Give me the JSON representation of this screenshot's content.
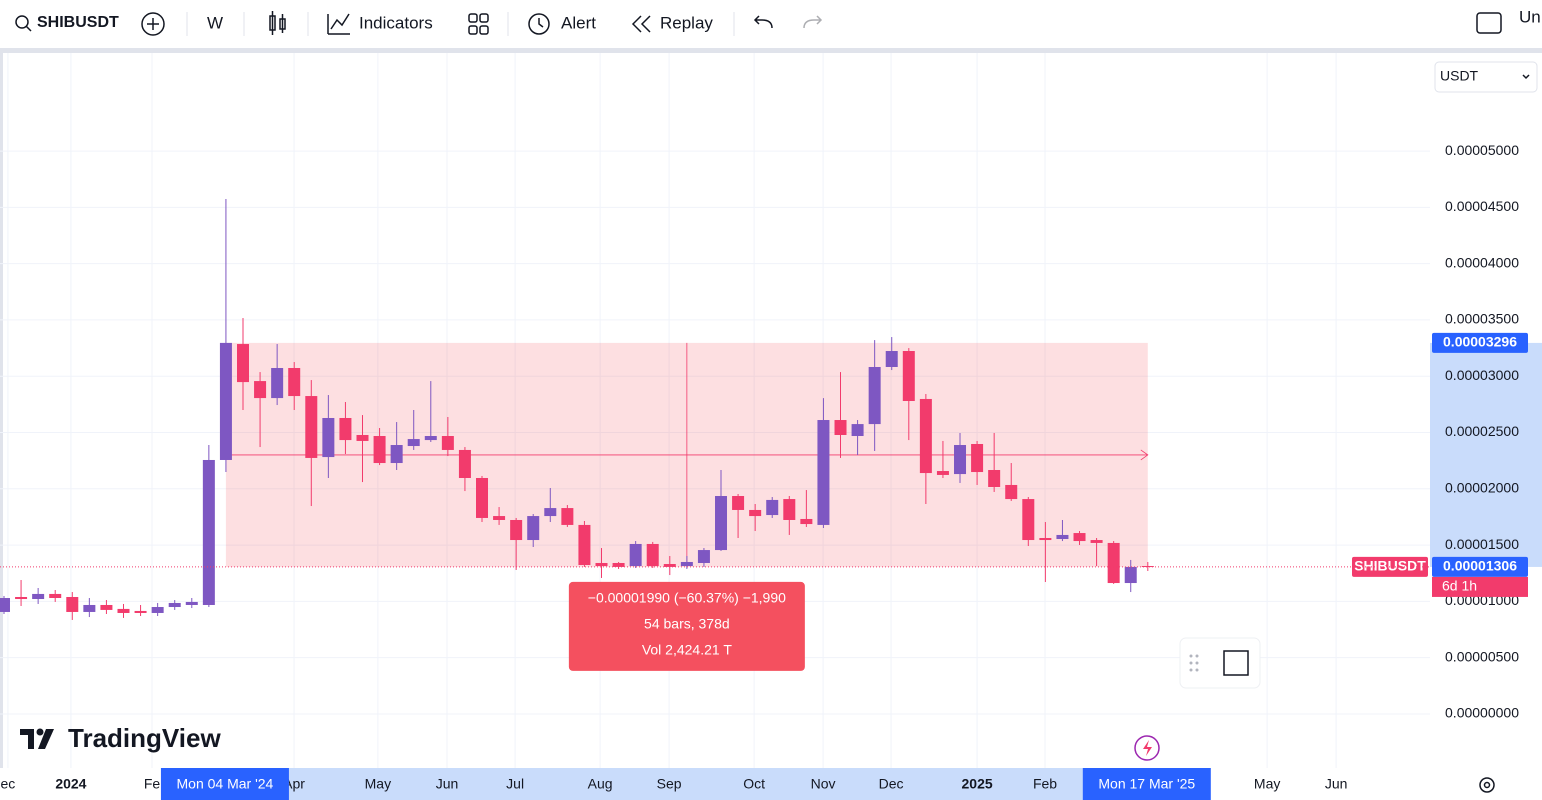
{
  "toolbar": {
    "symbol": "SHIBUSDT",
    "interval": "W",
    "indicators": "Indicators",
    "alert": "Alert",
    "replay": "Replay",
    "user": "Un"
  },
  "currency": "USDT",
  "logo": "TradingView",
  "chart_data": {
    "type": "candlestick",
    "categories": [
      null,
      null,
      null,
      null,
      null,
      null,
      null,
      null,
      null,
      null,
      null,
      null,
      null,
      "Mon 04 Mar '24",
      null,
      null,
      null,
      null,
      null,
      null,
      null,
      null,
      null,
      null,
      null,
      null,
      null,
      null,
      null,
      null,
      null,
      null,
      null,
      null,
      null,
      null,
      null,
      null,
      null,
      null,
      null,
      null,
      null,
      null,
      null,
      null,
      null,
      null,
      null,
      null,
      null,
      null,
      null,
      null,
      null,
      null,
      null,
      null,
      null,
      null,
      null,
      null,
      null,
      null,
      null,
      null,
      null,
      "Mon 17 Mar '25"
    ],
    "open": [
      9.06e-06,
      1.039e-05,
      1.021e-05,
      1.066e-05,
      1.039e-05,
      9.06e-06,
      9.68e-06,
      9.33e-06,
      9.15e-06,
      8.97e-06,
      9.5e-06,
      9.68e-06,
      9.68e-06,
      2.256e-05,
      3.286e-05,
      2.957e-05,
      2.806e-05,
      3.073e-05,
      2.824e-05,
      2.282e-05,
      2.629e-05,
      2.478e-05,
      2.469e-05,
      2.229e-05,
      2.38e-05,
      2.433e-05,
      2.469e-05,
      2.345e-05,
      2.096e-05,
      1.758e-05,
      1.723e-05,
      1.545e-05,
      1.758e-05,
      1.829e-05,
      1.679e-05,
      1.341e-05,
      1.341e-05,
      1.314e-05,
      1.51e-05,
      1.332e-05,
      1.314e-05,
      1.341e-05,
      1.456e-05,
      1.936e-05,
      1.812e-05,
      1.767e-05,
      1.909e-05,
      1.732e-05,
      1.679e-05,
      2.611e-05,
      2.469e-05,
      2.575e-05,
      3.082e-05,
      3.224e-05,
      2.798e-05,
      2.158e-05,
      2.131e-05,
      2.398e-05,
      2.167e-05,
      2.034e-05,
      1.909e-05,
      1.563e-05,
      1.554e-05,
      1.607e-05,
      1.545e-05,
      1.519e-05,
      1.163e-05,
      1.314e-05
    ],
    "high": [
      1.048e-05,
      1.19e-05,
      1.119e-05,
      1.101e-05,
      1.083e-05,
      1.03e-05,
      1.012e-05,
      9.77e-06,
      9.68e-06,
      9.86e-06,
      1.012e-05,
      1.03e-05,
      2.389e-05,
      4.574e-05,
      3.517e-05,
      3.037e-05,
      3.286e-05,
      3.126e-05,
      2.966e-05,
      2.833e-05,
      2.771e-05,
      2.655e-05,
      2.54e-05,
      2.593e-05,
      2.7e-05,
      2.957e-05,
      2.638e-05,
      2.371e-05,
      2.114e-05,
      1.838e-05,
      1.741e-05,
      1.776e-05,
      2.007e-05,
      1.856e-05,
      1.714e-05,
      1.474e-05,
      1.35e-05,
      1.536e-05,
      1.528e-05,
      1.403e-05,
      1.403e-05,
      1.474e-05,
      2.167e-05,
      1.954e-05,
      1.865e-05,
      1.927e-05,
      1.936e-05,
      1.989e-05,
      2.806e-05,
      3.037e-05,
      2.611e-05,
      3.321e-05,
      3.348e-05,
      3.25e-05,
      2.842e-05,
      2.425e-05,
      2.496e-05,
      2.425e-05,
      2.496e-05,
      2.229e-05,
      1.927e-05,
      1.705e-05,
      1.723e-05,
      1.625e-05,
      1.563e-05,
      1.536e-05,
      1.368e-05,
      1.35e-05
    ],
    "low": [
      8.88e-06,
      9.59e-06,
      9.77e-06,
      9.95e-06,
      8.35e-06,
      8.61e-06,
      8.88e-06,
      8.53e-06,
      8.7e-06,
      8.7e-06,
      9.24e-06,
      9.41e-06,
      9.5e-06,
      2.149e-05,
      2.7e-05,
      2.371e-05,
      2.744e-05,
      2.7e-05,
      1.847e-05,
      2.096e-05,
      2.309e-05,
      2.06e-05,
      2.211e-05,
      2.167e-05,
      2.345e-05,
      2.416e-05,
      2.291e-05,
      1.98e-05,
      1.705e-05,
      1.679e-05,
      1.279e-05,
      1.483e-05,
      1.705e-05,
      1.661e-05,
      1.306e-05,
      1.208e-05,
      1.288e-05,
      1.297e-05,
      1.297e-05,
      1.234e-05,
      1.288e-05,
      1.306e-05,
      1.448e-05,
      1.563e-05,
      1.625e-05,
      1.741e-05,
      1.59e-05,
      1.661e-05,
      1.652e-05,
      2.274e-05,
      2.3e-05,
      2.336e-05,
      3.055e-05,
      2.433e-05,
      1.865e-05,
      2.096e-05,
      2.052e-05,
      2.034e-05,
      1.972e-05,
      1.892e-05,
      1.492e-05,
      1.172e-05,
      1.536e-05,
      1.501e-05,
      1.314e-05,
      1.155e-05,
      1.083e-05,
      1.27e-05
    ],
    "close": [
      1.03e-05,
      1.021e-05,
      1.066e-05,
      1.03e-05,
      9.06e-06,
      9.68e-06,
      9.24e-06,
      8.97e-06,
      8.97e-06,
      9.5e-06,
      9.86e-06,
      9.95e-06,
      2.256e-05,
      3.296e-05,
      2.948e-05,
      2.806e-05,
      3.073e-05,
      2.824e-05,
      2.274e-05,
      2.629e-05,
      2.433e-05,
      2.425e-05,
      2.229e-05,
      2.389e-05,
      2.442e-05,
      2.469e-05,
      2.345e-05,
      2.096e-05,
      1.741e-05,
      1.723e-05,
      1.545e-05,
      1.758e-05,
      1.829e-05,
      1.679e-05,
      1.323e-05,
      1.314e-05,
      1.306e-05,
      1.51e-05,
      1.314e-05,
      1.306e-05,
      1.35e-05,
      1.456e-05,
      1.936e-05,
      1.812e-05,
      1.758e-05,
      1.901e-05,
      1.723e-05,
      1.687e-05,
      2.611e-05,
      2.478e-05,
      2.575e-05,
      3.082e-05,
      3.224e-05,
      2.78e-05,
      2.14e-05,
      2.123e-05,
      2.389e-05,
      2.149e-05,
      2.016e-05,
      1.909e-05,
      1.545e-05,
      1.545e-05,
      1.59e-05,
      1.536e-05,
      1.519e-05,
      1.163e-05,
      1.306e-05,
      1.306e-05
    ],
    "up_color": "#7e57c2",
    "down_color": "#f23b6c",
    "xlim": [
      -0.234,
      83.53
    ],
    "xticks": [
      {
        "value": 0.23,
        "label": "ec"
      },
      {
        "value": 3.92,
        "label": "2024"
      },
      {
        "value": 8.67,
        "label": "Fe"
      },
      {
        "value": 16.99,
        "label": "Apr"
      },
      {
        "value": 21.9,
        "label": "May"
      },
      {
        "value": 25.95,
        "label": "Jun"
      },
      {
        "value": 29.94,
        "label": "Jul"
      },
      {
        "value": 34.92,
        "label": "Aug"
      },
      {
        "value": 38.96,
        "label": "Sep"
      },
      {
        "value": 43.94,
        "label": "Oct"
      },
      {
        "value": 47.98,
        "label": "Nov"
      },
      {
        "value": 51.96,
        "label": "Dec"
      },
      {
        "value": 57,
        "label": "2025"
      },
      {
        "value": 60.98,
        "label": "Feb"
      },
      {
        "value": 73.99,
        "label": "May"
      },
      {
        "value": 78.03,
        "label": "Jun"
      }
    ],
    "ylim": [
      -4.8e-06,
      5.88e-05
    ],
    "yticks": [
      {
        "value": 0,
        "label": "0.00000000"
      },
      {
        "value": 5e-06,
        "label": "0.00000500"
      },
      {
        "value": 1e-05,
        "label": "0.00001000"
      },
      {
        "value": 1.5e-05,
        "label": "0.00001500"
      },
      {
        "value": 2e-05,
        "label": "0.00002000"
      },
      {
        "value": 2.5e-05,
        "label": "0.00002500"
      },
      {
        "value": 3e-05,
        "label": "0.00003000"
      },
      {
        "value": 3.5e-05,
        "label": "0.00003500"
      },
      {
        "value": 4e-05,
        "label": "0.00004000"
      },
      {
        "value": 4.5e-05,
        "label": "0.00004500"
      },
      {
        "value": 5e-05,
        "label": "0.00005000"
      }
    ],
    "grid": true,
    "last_price": {
      "value": 1.306e-05,
      "label": "0.00001306",
      "countdown": "6d 1h"
    },
    "range_high": {
      "value": 3.296e-05,
      "label": "0.00003296"
    },
    "measure": {
      "lines": [
        "−0.00001990 (−60.37%) −1,990",
        "54 bars, 378d",
        "Vol 2,424.21 T"
      ],
      "color": "#f4505f"
    }
  }
}
